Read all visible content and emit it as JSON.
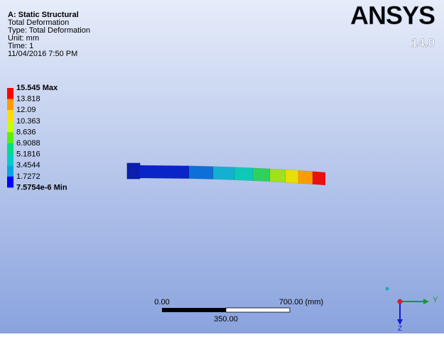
{
  "header": {
    "title": "A: Static Structural",
    "lines": [
      "Total Deformation",
      "Type: Total Deformation",
      "Unit: mm",
      "Time: 1",
      "11/04/2016 7:50 PM"
    ]
  },
  "legend": {
    "labels": [
      "15.545 Max",
      "13.818",
      "12.09",
      "10.363",
      "8.636",
      "6.9088",
      "5.1816",
      "3.4544",
      "1.7272",
      "7.5754e-6 Min"
    ],
    "colors": [
      "#ff0000",
      "#ff9a00",
      "#ffdd00",
      "#c8ff00",
      "#5aee00",
      "#00dd88",
      "#00cccc",
      "#00a6e6",
      "#0000ff"
    ]
  },
  "logo": {
    "brand": "ANSYS",
    "version": "14.0"
  },
  "scale_bar": {
    "start": "0.00",
    "end": "700.00 (mm)",
    "middle": "350.00"
  },
  "triad": {
    "y_label": "Y",
    "z_label": "Z"
  }
}
